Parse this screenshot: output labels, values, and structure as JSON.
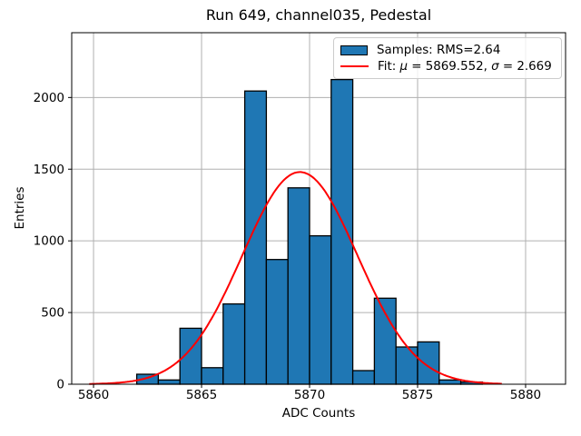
{
  "chart_data": {
    "type": "bar",
    "subtype": "histogram",
    "title": "Run 649, channel035, Pedestal",
    "xlabel": "ADC Counts",
    "ylabel": "Entries",
    "bin_edges": [
      5862,
      5863,
      5864,
      5865,
      5866,
      5867,
      5868,
      5869,
      5870,
      5871,
      5872,
      5873,
      5874,
      5875,
      5876,
      5877,
      5878
    ],
    "counts": [
      70,
      30,
      390,
      115,
      560,
      2045,
      870,
      1370,
      1035,
      2125,
      95,
      600,
      260,
      295,
      30,
      15
    ],
    "fit_curve": {
      "shape": "gaussian",
      "mu": 5869.552,
      "sigma": 2.669,
      "amplitude": 1480,
      "x_range": [
        5859.8,
        5878.9
      ]
    },
    "stats": {
      "rms": 2.64,
      "fit_mu": 5869.552,
      "fit_sigma": 2.669
    },
    "x_ticks": [
      5860,
      5865,
      5870,
      5875,
      5880
    ],
    "y_ticks": [
      0,
      500,
      1000,
      1500,
      2000
    ],
    "xlim": [
      5858.99,
      5881.85
    ],
    "ylim": [
      0,
      2452
    ],
    "grid": true,
    "legend": {
      "position": "upper right",
      "entries": [
        {
          "label": "Samples: RMS=2.64",
          "swatch": "bar"
        },
        {
          "label": "Fit: μ = 5869.552, σ = 2.669",
          "swatch": "line",
          "parts": {
            "prefix": "Fit: ",
            "mu_symbol": "μ",
            "mu_eq": " = 5869.552, ",
            "sigma_symbol": "σ",
            "sigma_eq": " = 2.669"
          }
        }
      ]
    },
    "colors": {
      "bar_fill": "#1f77b4",
      "bar_edge": "#000000",
      "fit_line": "#ff0000",
      "grid": "#b0b0b0",
      "frame": "#000000",
      "text": "#000000",
      "legend_edge": "#cccccc"
    }
  }
}
